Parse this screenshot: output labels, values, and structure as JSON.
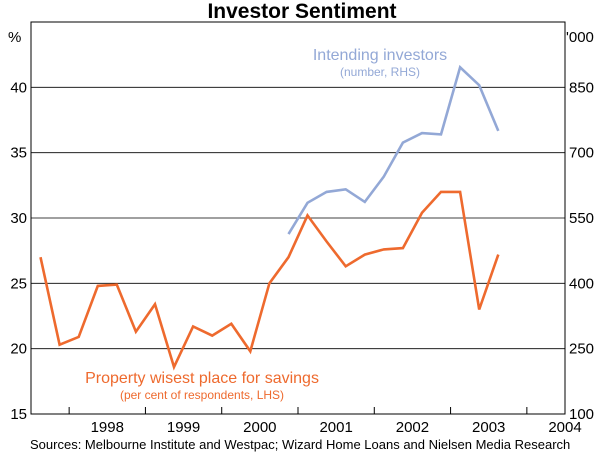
{
  "chart_data": {
    "type": "line",
    "title": "Investor Sentiment",
    "left_axis": {
      "unit": "%",
      "ylim": [
        15,
        45
      ],
      "ticks": [
        15,
        20,
        25,
        30,
        35,
        40
      ]
    },
    "right_axis": {
      "unit": "'000",
      "ylim": [
        100,
        1000
      ],
      "ticks": [
        100,
        250,
        400,
        550,
        700,
        850
      ]
    },
    "x_axis": {
      "xlim": [
        1997.5,
        2004.5
      ],
      "year_labels": [
        "1998",
        "1999",
        "2000",
        "2001",
        "2002",
        "2003",
        "2004"
      ]
    },
    "series": [
      {
        "name": "Property wisest place for savings",
        "axis": "left",
        "color": "#ee6a2e",
        "x": [
          1997.625,
          1997.875,
          1998.125,
          1998.375,
          1998.625,
          1998.875,
          1999.125,
          1999.375,
          1999.625,
          1999.875,
          2000.125,
          2000.375,
          2000.625,
          2000.875,
          2001.125,
          2001.375,
          2001.625,
          2001.875,
          2002.125,
          2002.375,
          2002.625,
          2002.875,
          2003.125,
          2003.375,
          2003.625
        ],
        "values": [
          27.0,
          20.3,
          20.9,
          24.8,
          24.9,
          21.3,
          23.4,
          18.6,
          21.7,
          21.0,
          21.9,
          19.8,
          25.0,
          27.0,
          30.2,
          28.2,
          26.3,
          27.2,
          27.6,
          27.7,
          30.4,
          32.0,
          32.0,
          23.0,
          27.2
        ]
      },
      {
        "name": "Intending investors",
        "axis": "right",
        "color": "#93a8d6",
        "x": [
          2000.875,
          2001.125,
          2001.375,
          2001.625,
          2001.875,
          2002.125,
          2002.375,
          2002.625,
          2002.875,
          2003.125,
          2003.375,
          2003.625
        ],
        "values": [
          513,
          585,
          610,
          616,
          587,
          645,
          723,
          745,
          742,
          896,
          855,
          750
        ]
      }
    ],
    "annotations": {
      "investors_label": "Intending investors",
      "investors_sub": "(number, RHS)",
      "property_label": "Property wisest place for savings",
      "property_sub": "(per cent of respondents, LHS)"
    }
  },
  "sources": "Sources: Melbourne Institute and Westpac; Wizard Home Loans and Nielsen Media Research"
}
